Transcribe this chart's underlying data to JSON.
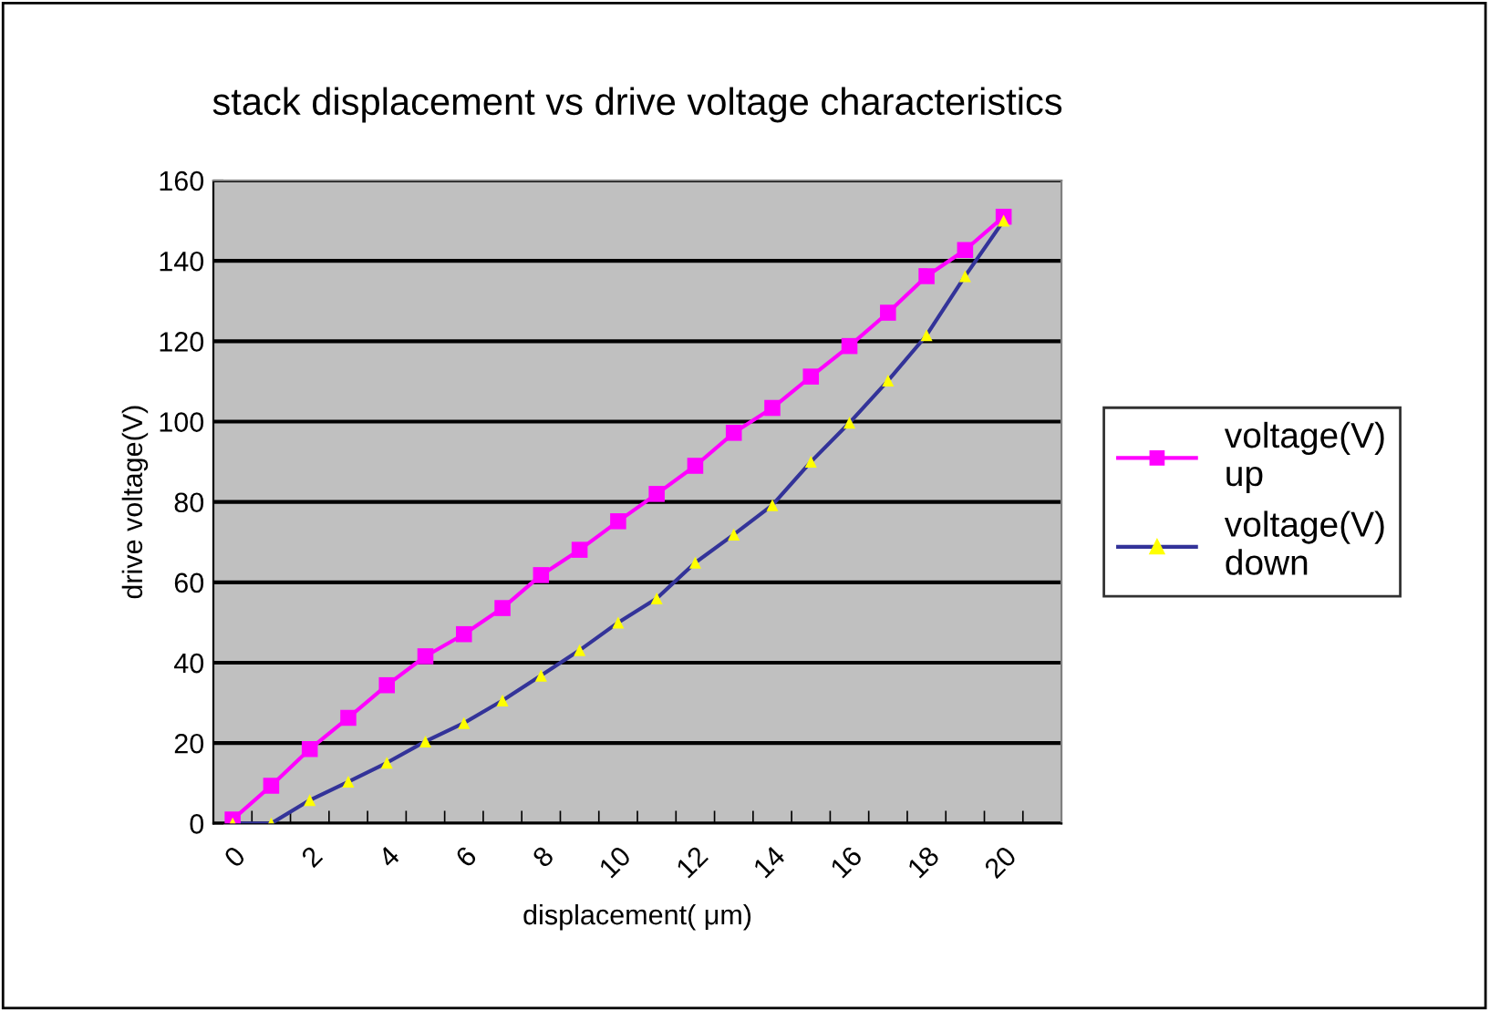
{
  "chart_data": {
    "type": "line",
    "title": "stack displacement vs drive voltage characteristics",
    "xlabel": "displacement( μm)",
    "ylabel": "drive voltage(V)",
    "categories": [
      "0",
      null,
      "2",
      null,
      "4",
      null,
      "6",
      null,
      "8",
      null,
      "10",
      null,
      "12",
      null,
      "14",
      null,
      "16",
      null,
      "18",
      null,
      "20",
      null
    ],
    "series": [
      {
        "name": "voltage(V)\nup",
        "color": "#ff00ff",
        "marker": "square",
        "values": [
          1,
          9.4,
          18.5,
          26.3,
          34.4,
          41.6,
          47.1,
          53.6,
          61.8,
          68.1,
          75.2,
          82,
          89,
          97.2,
          103.4,
          111.2,
          118.8,
          127.1,
          136.2,
          142.7,
          151,
          null
        ]
      },
      {
        "name": "voltage(V)\ndown",
        "color": "#333399",
        "marker": "triangle",
        "colors": [
          "#ffff00",
          "#ffff00",
          "#ffff00",
          "#ffff00",
          "#ffff00",
          "#ffff00",
          "#ffff00",
          "#ffff00",
          "#ffff00",
          "#ffff00",
          "#ffff00",
          "#ffff00",
          "#ffff00",
          "#ffff00",
          "#ffff00",
          "#ffff00",
          "#ffff00",
          "#ffff00",
          "#ffff00",
          "#ffff00",
          "#ffff00",
          "#ffff00"
        ],
        "values": [
          0,
          0,
          5.8,
          10.4,
          15.1,
          20.4,
          25,
          30.6,
          36.8,
          43.1,
          50,
          56,
          64.9,
          71.9,
          79.2,
          90,
          99.7,
          110.2,
          121.5,
          136.2,
          150,
          null
        ]
      }
    ],
    "ylim": [
      0,
      160
    ],
    "yticks": [
      0,
      20,
      40,
      60,
      80,
      100,
      120,
      140,
      160
    ],
    "grid": "y",
    "legend": "right"
  }
}
